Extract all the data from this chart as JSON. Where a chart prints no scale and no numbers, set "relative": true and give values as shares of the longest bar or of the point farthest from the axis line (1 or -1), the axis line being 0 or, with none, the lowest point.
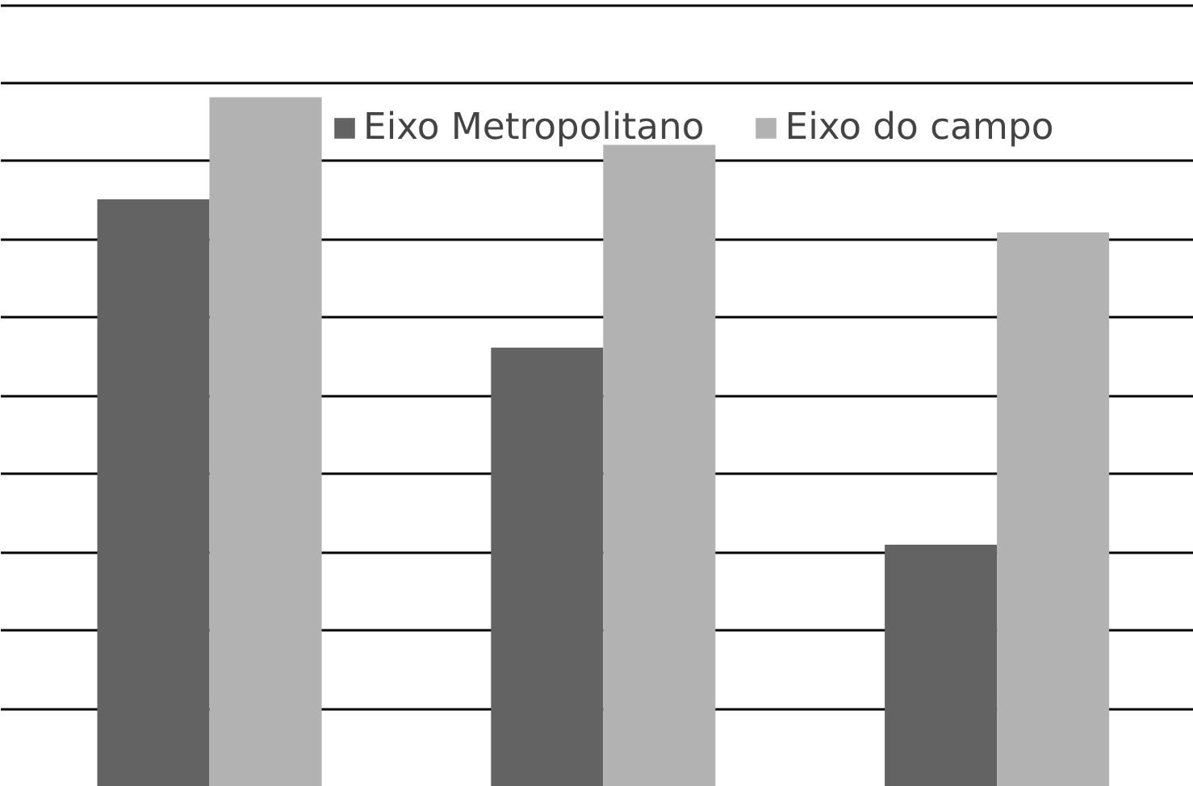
{
  "chart_data": {
    "type": "bar",
    "relative": true,
    "categories": [
      null,
      null,
      null
    ],
    "series": [
      {
        "name": "Eixo Metropolitano",
        "color": "#636363",
        "values": [
          0.852,
          0.637,
          0.351
        ]
      },
      {
        "name": "Eixo do campo",
        "color": "#b2b2b2",
        "values": [
          1,
          0.931,
          0.804
        ]
      }
    ],
    "grid": "y",
    "legend": "top"
  }
}
